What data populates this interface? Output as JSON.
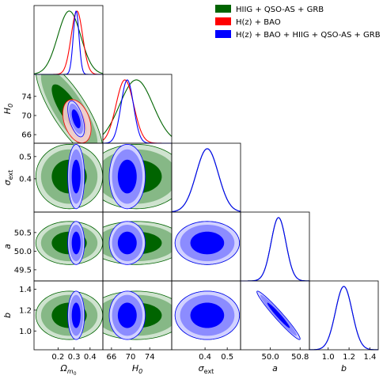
{
  "chart_data": {
    "type": "corner",
    "parameters": [
      {
        "key": "om",
        "label_main": "Ω",
        "label_sub": "m",
        "label_subsub": "0",
        "range": [
          0.05,
          0.48
        ],
        "ticks": [
          "0.2",
          "0.3",
          "0.4"
        ],
        "tick_values": [
          0.2,
          0.3,
          0.4
        ]
      },
      {
        "key": "h0",
        "label_main": "H",
        "label_sub": "0",
        "label_subsub": "",
        "range": [
          64.2,
          78.6
        ],
        "ticks": [
          "66",
          "70",
          "74"
        ],
        "tick_values": [
          66,
          70,
          74
        ]
      },
      {
        "key": "sext",
        "label_main": "σ",
        "label_sub": "ext",
        "label_subsub": "",
        "range": [
          0.25,
          0.56
        ],
        "ticks": [
          "0.4",
          "0.5"
        ],
        "tick_values": [
          0.4,
          0.5
        ]
      },
      {
        "key": "a",
        "label_main": "a",
        "label_sub": "",
        "label_subsub": "",
        "range": [
          49.2,
          51.05
        ],
        "ticks": [
          "49.5",
          "50.0",
          "50.5"
        ],
        "ticks_x": [
          "50.0",
          "50.8"
        ],
        "tick_values": [
          49.5,
          50.0,
          50.5
        ],
        "tick_values_x": [
          50.0,
          50.8
        ]
      },
      {
        "key": "b",
        "label_main": "b",
        "label_sub": "",
        "label_subsub": "",
        "range": [
          0.82,
          1.48
        ],
        "ticks": [
          "1.0",
          "1.2",
          "1.4"
        ],
        "tick_values": [
          1.0,
          1.2,
          1.4
        ]
      }
    ],
    "series": [
      {
        "name": "HIIG + QSO-AS + GRB",
        "color": "#006400",
        "params": [
          "om",
          "h0",
          "sext",
          "a",
          "b"
        ],
        "mean": {
          "om": 0.27,
          "h0": 71.2,
          "sext": 0.41,
          "a": 50.22,
          "b": 1.15
        },
        "sigma": {
          "om": 0.072,
          "h0": 3.5,
          "sext": 0.05,
          "a": 0.2,
          "b": 0.08
        },
        "corr": {
          "om|h0": -0.8,
          "om|sext": 0.0,
          "om|a": 0.0,
          "om|b": 0.0,
          "h0|sext": 0.0,
          "h0|a": 0.0,
          "h0|b": 0.0,
          "sext|a": 0.0,
          "sext|b": 0.0,
          "a|b": -0.97
        }
      },
      {
        "name": "H(z) + BAO",
        "color": "#ff0000",
        "params": [
          "om",
          "h0"
        ],
        "mean": {
          "om": 0.318,
          "h0": 68.8
        },
        "sigma": {
          "om": 0.036,
          "h0": 1.85
        },
        "corr": {
          "om|h0": -0.35
        }
      },
      {
        "name": "H(z) + BAO + HIIG + QSO-AS + GRB",
        "color": "#0000ff",
        "params": [
          "om",
          "h0",
          "sext",
          "a",
          "b"
        ],
        "mean": {
          "om": 0.313,
          "h0": 69.3,
          "sext": 0.41,
          "a": 50.22,
          "b": 1.15
        },
        "sigma": {
          "om": 0.018,
          "h0": 1.3,
          "sext": 0.05,
          "a": 0.2,
          "b": 0.08
        },
        "corr": {
          "om|h0": -0.55,
          "om|sext": 0.0,
          "om|a": 0.0,
          "om|b": 0.0,
          "h0|sext": 0.0,
          "h0|a": 0.0,
          "h0|b": 0.0,
          "sext|a": 0.0,
          "sext|b": 0.0,
          "a|b": -0.97
        }
      }
    ],
    "contour_levels": [
      "1σ",
      "2σ"
    ],
    "legend_position": "top-right",
    "grid": false
  },
  "colors": {
    "green_fill_inner": "#006400",
    "green_fill_outer": "#86b886",
    "green_fill_outer2": "#cfe3cf",
    "red_fill_inner": "#f79a9a",
    "red_fill_outer": "#fbd0d0",
    "blue_fill_inner": "#0000ff",
    "blue_fill_outer": "#8c8cff",
    "blue_fill_outer2": "#d2d2ff"
  }
}
